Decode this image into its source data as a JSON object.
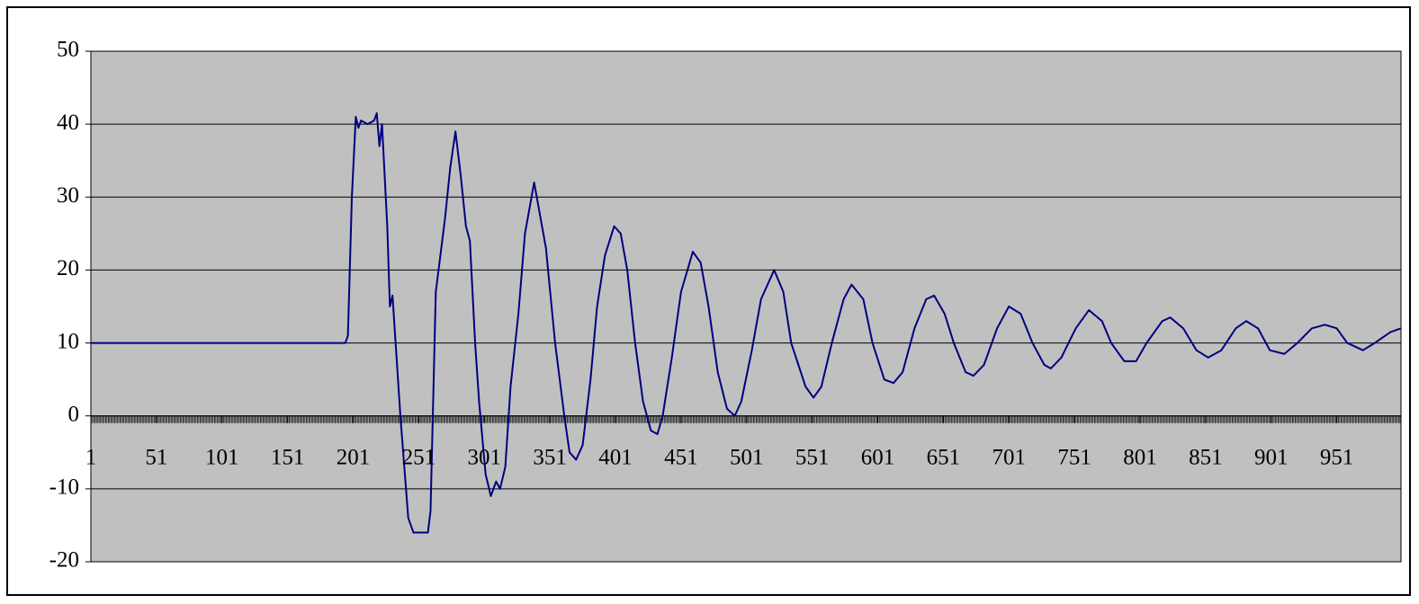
{
  "chart_data": {
    "type": "line",
    "x": [
      1,
      50,
      100,
      150,
      195,
      197,
      200,
      203,
      205,
      207,
      212,
      217,
      219,
      221,
      223,
      225,
      227,
      229,
      231,
      237,
      243,
      247,
      258,
      260,
      264,
      271,
      275,
      279,
      283,
      287,
      290,
      294,
      297,
      302,
      306,
      310,
      313,
      317,
      321,
      327,
      332,
      339,
      343,
      348,
      355,
      362,
      366,
      371,
      376,
      382,
      387,
      393,
      400,
      405,
      410,
      416,
      422,
      428,
      433,
      437,
      444,
      451,
      460,
      466,
      472,
      479,
      486,
      492,
      497,
      505,
      512,
      522,
      529,
      535,
      546,
      552,
      558,
      566,
      575,
      581,
      590,
      597,
      606,
      613,
      620,
      629,
      638,
      644,
      652,
      659,
      668,
      674,
      682,
      692,
      701,
      710,
      719,
      728,
      733,
      741,
      752,
      762,
      772,
      779,
      789,
      798,
      806,
      818,
      824,
      834,
      844,
      853,
      863,
      874,
      882,
      891,
      900,
      911,
      921,
      932,
      942,
      951,
      959,
      971,
      980,
      992,
      1000
    ],
    "values": [
      10,
      10,
      10,
      10,
      10,
      11,
      30,
      41,
      39.5,
      40.5,
      40,
      40.5,
      41.5,
      37,
      40,
      33,
      26,
      15,
      16.5,
      0,
      -14,
      -16,
      -16,
      -13,
      17,
      27,
      34,
      39,
      33,
      26,
      24,
      10,
      2,
      -8,
      -11,
      -9,
      -10,
      -7,
      4,
      14,
      25,
      32,
      28,
      23,
      10,
      0,
      -5,
      -6,
      -4,
      5,
      15,
      22,
      26,
      25,
      20,
      10,
      2,
      -2,
      -2.5,
      0,
      8,
      17,
      22.5,
      21,
      15,
      6,
      1,
      0,
      2,
      9,
      16,
      20,
      17,
      10,
      4,
      2.5,
      4,
      10,
      16,
      18,
      16,
      10,
      5,
      4.5,
      6,
      12,
      16,
      16.5,
      14,
      10,
      6,
      5.5,
      7,
      12,
      15,
      14,
      10,
      7,
      6.5,
      8,
      12,
      14.5,
      13,
      10,
      7.5,
      7.5,
      10,
      13,
      13.5,
      12,
      9,
      8,
      9,
      12,
      13,
      12,
      9,
      8.5,
      10,
      12,
      12.5,
      12,
      10,
      9,
      10,
      11.5,
      12
    ],
    "color": "#000080",
    "xlim": [
      1,
      1000
    ],
    "xticks": [
      1,
      51,
      101,
      151,
      201,
      251,
      301,
      351,
      401,
      451,
      501,
      551,
      601,
      651,
      701,
      751,
      801,
      851,
      901,
      951
    ],
    "ylim": [
      -20,
      50
    ],
    "yticks": [
      -20,
      -10,
      0,
      10,
      20,
      30,
      40,
      50
    ],
    "grid": true
  }
}
